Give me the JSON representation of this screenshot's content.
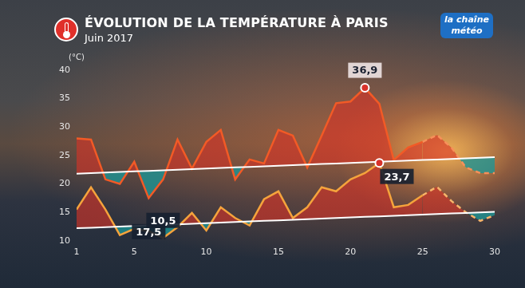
{
  "chart_data": {
    "type": "line",
    "title": "ÉVOLUTION DE LA TEMPÉRATURE À PARIS",
    "subtitle": "Juin 2017",
    "y_label": "(°C)",
    "logo": "la chaîne météo",
    "x": [
      1,
      2,
      3,
      4,
      5,
      6,
      7,
      8,
      9,
      10,
      11,
      12,
      13,
      14,
      15,
      16,
      17,
      18,
      19,
      20,
      21,
      22,
      23,
      24,
      25,
      26,
      27,
      28,
      29,
      30
    ],
    "xlim": [
      1,
      30
    ],
    "xticks": [
      1,
      5,
      10,
      15,
      20,
      25,
      30
    ],
    "ylim": [
      10,
      40
    ],
    "yticks": [
      10,
      15,
      20,
      25,
      30,
      35,
      40
    ],
    "grid": false,
    "series": [
      {
        "type": "line",
        "color": "#ffffff",
        "line_style": "solid",
        "values": [
          21.8,
          21.9,
          22.0,
          22.1,
          22.2,
          22.3,
          22.4,
          22.5,
          22.6,
          22.7,
          22.8,
          22.9,
          23.0,
          23.1,
          23.2,
          23.3,
          23.4,
          23.5,
          23.6,
          23.7,
          23.8,
          23.9,
          24.0,
          24.1,
          24.2,
          24.3,
          24.4,
          24.5,
          24.6,
          24.7
        ]
      },
      {
        "type": "line",
        "color": "#ffffff",
        "line_style": "solid",
        "values": [
          12.2,
          12.3,
          12.4,
          12.5,
          12.6,
          12.7,
          12.8,
          12.9,
          13.0,
          13.1,
          13.2,
          13.3,
          13.4,
          13.5,
          13.6,
          13.7,
          13.8,
          13.9,
          14.0,
          14.1,
          14.2,
          14.3,
          14.4,
          14.5,
          14.6,
          14.7,
          14.8,
          14.9,
          15.0,
          15.1
        ]
      },
      {
        "type": "area",
        "color": "#f25a26",
        "line_style": "solid",
        "values": [
          28.0,
          27.8,
          20.8,
          20.0,
          23.9,
          17.5,
          20.8,
          27.8,
          22.7,
          27.4,
          29.5,
          20.8,
          24.3,
          23.6,
          29.5,
          28.5,
          22.9,
          28.5,
          34.2,
          34.5,
          36.9,
          34.1,
          24.2,
          26.4,
          27.4,
          null,
          null,
          null,
          null,
          null
        ]
      },
      {
        "type": "area",
        "color": "#f7905a",
        "line_style": "dashed",
        "values": [
          null,
          null,
          null,
          null,
          null,
          null,
          null,
          null,
          null,
          null,
          null,
          null,
          null,
          null,
          null,
          null,
          null,
          null,
          null,
          null,
          null,
          null,
          null,
          null,
          27.4,
          28.6,
          26.4,
          22.9,
          21.9,
          21.9
        ]
      },
      {
        "type": "area",
        "color": "#f5a33c",
        "line_style": "solid",
        "values": [
          15.5,
          19.4,
          15.5,
          11.0,
          12.1,
          11.7,
          10.5,
          12.4,
          14.9,
          11.8,
          15.9,
          14.0,
          12.7,
          17.3,
          18.7,
          14.0,
          15.9,
          19.4,
          18.7,
          20.8,
          21.9,
          23.7,
          15.9,
          16.3,
          18.0,
          null,
          null,
          null,
          null,
          null
        ]
      },
      {
        "type": "area",
        "color": "#f7b46a",
        "line_style": "dashed",
        "values": [
          null,
          null,
          null,
          null,
          null,
          null,
          null,
          null,
          null,
          null,
          null,
          null,
          null,
          null,
          null,
          null,
          null,
          null,
          null,
          null,
          null,
          null,
          null,
          null,
          18.0,
          19.5,
          17.0,
          15.0,
          13.5,
          14.5
        ]
      }
    ],
    "annotations": [
      {
        "x": 21,
        "y": 36.9,
        "label": "36,9"
      },
      {
        "x": 22,
        "y": 23.7,
        "label": "23,7"
      },
      {
        "x": 6,
        "y": 17.5,
        "label": "17,5"
      },
      {
        "x": 7,
        "y": 10.5,
        "label": "10,5"
      }
    ]
  }
}
